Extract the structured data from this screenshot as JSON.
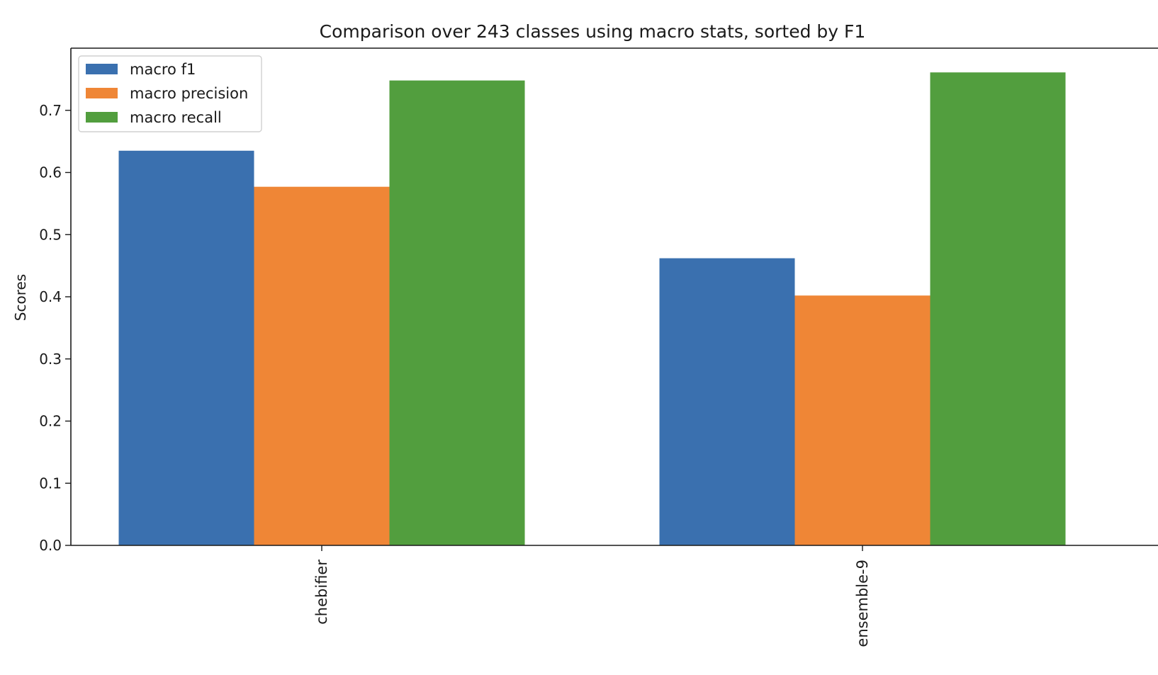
{
  "chart_data": {
    "type": "bar",
    "title": "Comparison over 243 classes using macro stats, sorted by F1",
    "xlabel": "",
    "ylabel": "Scores",
    "categories": [
      "chebifier",
      "ensemble-9"
    ],
    "series": [
      {
        "name": "macro f1",
        "color": "#3a70af",
        "values": [
          0.635,
          0.462
        ]
      },
      {
        "name": "macro precision",
        "color": "#ef8636",
        "values": [
          0.577,
          0.402
        ]
      },
      {
        "name": "macro recall",
        "color": "#529e3e",
        "values": [
          0.748,
          0.761
        ]
      }
    ],
    "ylim": [
      0,
      0.8
    ],
    "yticks": [
      "0.0",
      "0.1",
      "0.2",
      "0.3",
      "0.4",
      "0.5",
      "0.6",
      "0.7"
    ],
    "grid": false,
    "legend_position": "top-left"
  }
}
